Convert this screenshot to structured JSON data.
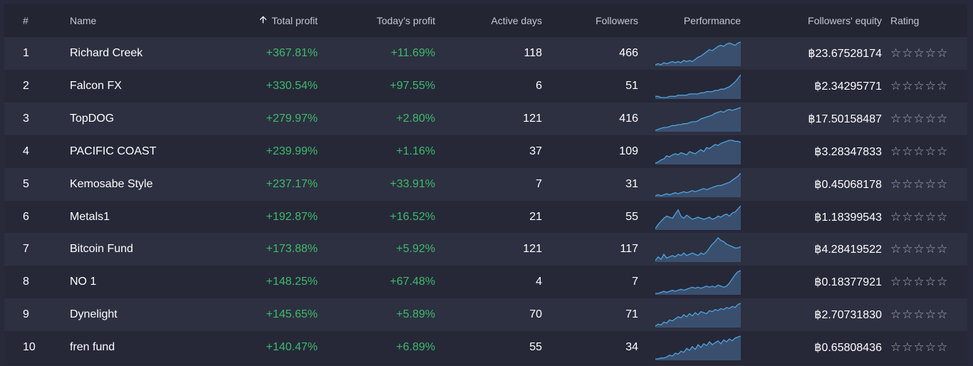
{
  "columns": {
    "num": "#",
    "name": "Name",
    "total_profit": "Total profit",
    "todays_profit": "Today’s profit",
    "active_days": "Active days",
    "followers": "Followers",
    "performance": "Performance",
    "equity": "Followers' equity",
    "rating": "Rating"
  },
  "sort_icon": "arrow-up-icon",
  "rows": [
    {
      "num": "1",
      "name": "Richard Creek",
      "total": "+367.81%",
      "today": "+11.69%",
      "days": "118",
      "followers": "466",
      "equity": "฿23.67528174",
      "rating": "☆☆☆☆☆",
      "rating_value": 0,
      "perf": [
        2,
        3,
        2,
        4,
        3,
        4,
        5,
        4,
        5,
        4,
        6,
        5,
        6,
        5,
        7,
        9,
        10,
        12,
        14,
        16,
        15,
        17,
        19,
        20,
        19,
        21,
        22,
        21,
        20,
        22,
        23
      ]
    },
    {
      "num": "2",
      "name": "Falcon FX",
      "total": "+330.54%",
      "today": "+97.55%",
      "days": "6",
      "followers": "51",
      "equity": "฿2.34295771",
      "rating": "☆☆☆☆☆",
      "rating_value": 0,
      "perf": [
        2,
        2,
        1,
        1,
        1,
        2,
        2,
        2,
        3,
        3,
        3,
        3,
        4,
        4,
        4,
        4,
        5,
        5,
        6,
        6,
        6,
        7,
        7,
        8,
        8,
        9,
        10,
        12,
        14,
        17,
        20
      ]
    },
    {
      "num": "3",
      "name": "TopDOG",
      "total": "+279.97%",
      "today": "+2.80%",
      "days": "121",
      "followers": "416",
      "equity": "฿17.50158487",
      "rating": "☆☆☆☆☆",
      "rating_value": 0,
      "perf": [
        2,
        3,
        4,
        5,
        5,
        6,
        7,
        7,
        8,
        8,
        9,
        9,
        10,
        11,
        11,
        12,
        14,
        15,
        16,
        17,
        18,
        20,
        21,
        22,
        21,
        23,
        24,
        23,
        24,
        25,
        26
      ]
    },
    {
      "num": "4",
      "name": "PACIFIC COAST",
      "total": "+239.99%",
      "today": "+1.16%",
      "days": "37",
      "followers": "109",
      "equity": "฿3.28347833",
      "rating": "☆☆☆☆☆",
      "rating_value": 0,
      "perf": [
        2,
        3,
        5,
        6,
        9,
        8,
        10,
        11,
        10,
        12,
        11,
        10,
        13,
        12,
        11,
        13,
        15,
        13,
        17,
        16,
        18,
        20,
        19,
        21,
        22,
        23,
        24,
        24,
        23,
        23,
        22
      ]
    },
    {
      "num": "5",
      "name": "Kemosabe Style",
      "total": "+237.17%",
      "today": "+33.91%",
      "days": "7",
      "followers": "31",
      "equity": "฿0.45068178",
      "rating": "☆☆☆☆☆",
      "rating_value": 0,
      "perf": [
        2,
        3,
        2,
        3,
        4,
        3,
        4,
        5,
        4,
        5,
        6,
        5,
        6,
        7,
        6,
        7,
        8,
        9,
        8,
        9,
        10,
        11,
        12,
        12,
        13,
        14,
        15,
        17,
        19,
        21,
        24
      ]
    },
    {
      "num": "6",
      "name": "Metals1",
      "total": "+192.87%",
      "today": "+16.52%",
      "days": "21",
      "followers": "55",
      "equity": "฿1.18399543",
      "rating": "☆☆☆☆☆",
      "rating_value": 0,
      "perf": [
        2,
        6,
        9,
        12,
        14,
        13,
        12,
        16,
        20,
        14,
        12,
        15,
        13,
        11,
        12,
        13,
        12,
        11,
        12,
        13,
        11,
        12,
        14,
        13,
        15,
        16,
        14,
        17,
        18,
        21,
        24
      ]
    },
    {
      "num": "7",
      "name": "Bitcoin Fund",
      "total": "+173.88%",
      "today": "+5.92%",
      "days": "121",
      "followers": "117",
      "equity": "฿4.28419522",
      "rating": "☆☆☆☆☆",
      "rating_value": 0,
      "perf": [
        6,
        9,
        7,
        11,
        8,
        9,
        10,
        9,
        11,
        10,
        12,
        10,
        11,
        12,
        11,
        10,
        12,
        11,
        13,
        16,
        19,
        21,
        24,
        22,
        21,
        19,
        18,
        17,
        16,
        16,
        17
      ]
    },
    {
      "num": "8",
      "name": "NO 1",
      "total": "+148.25%",
      "today": "+67.48%",
      "days": "4",
      "followers": "7",
      "equity": "฿0.18377921",
      "rating": "☆☆☆☆☆",
      "rating_value": 0,
      "perf": [
        2,
        2,
        3,
        4,
        3,
        4,
        5,
        4,
        5,
        6,
        5,
        6,
        7,
        8,
        7,
        8,
        7,
        8,
        9,
        8,
        9,
        8,
        10,
        9,
        8,
        9,
        12,
        16,
        20,
        23,
        24
      ]
    },
    {
      "num": "9",
      "name": "Dynelight",
      "total": "+145.65%",
      "today": "+5.89%",
      "days": "70",
      "followers": "71",
      "equity": "฿2.70731830",
      "rating": "☆☆☆☆☆",
      "rating_value": 0,
      "perf": [
        2,
        4,
        3,
        6,
        5,
        8,
        7,
        9,
        11,
        10,
        13,
        11,
        14,
        12,
        15,
        13,
        16,
        15,
        14,
        17,
        16,
        18,
        17,
        19,
        18,
        20,
        19,
        21,
        20,
        23,
        24
      ]
    },
    {
      "num": "10",
      "name": "fren fund",
      "total": "+140.47%",
      "today": "+6.89%",
      "days": "55",
      "followers": "34",
      "equity": "฿0.65808436",
      "rating": "☆☆☆☆☆",
      "rating_value": 0,
      "perf": [
        2,
        2,
        3,
        3,
        4,
        6,
        5,
        8,
        7,
        10,
        9,
        13,
        11,
        15,
        12,
        17,
        14,
        18,
        16,
        20,
        17,
        19,
        21,
        18,
        22,
        20,
        23,
        21,
        24,
        25,
        26
      ]
    }
  ],
  "colors": {
    "page_bg": "#272a3a",
    "row_odd": "#2d3040",
    "row_even": "#262838",
    "green": "#3dbb6c",
    "spark_line": "#4ea3e0",
    "spark_fill": "#3a4f6e"
  }
}
